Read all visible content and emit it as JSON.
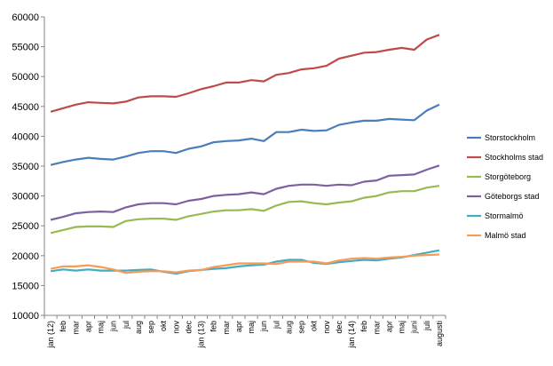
{
  "chart_data": {
    "type": "line",
    "title": "",
    "xlabel": "",
    "ylabel": "",
    "ylim": [
      10000,
      60000
    ],
    "yticks": [
      10000,
      15000,
      20000,
      25000,
      30000,
      35000,
      40000,
      45000,
      50000,
      55000,
      60000
    ],
    "grid": false,
    "legend": "right",
    "x": [
      "jan (12)",
      "feb",
      "mar",
      "apr",
      "maj",
      "jun",
      "jul",
      "aug",
      "sep",
      "okt",
      "nov",
      "dec",
      "jan (13)",
      "feb",
      "mar",
      "apr",
      "maj",
      "jun",
      "jul",
      "aug",
      "sep",
      "okt",
      "nov",
      "dec",
      "jan (14)",
      "feb",
      "mar",
      "apr",
      "maj",
      "juni",
      "juli",
      "augusti"
    ],
    "series": [
      {
        "name": "Storstockholm",
        "color": "#4a7ebb",
        "values": [
          35200,
          35700,
          36100,
          36400,
          36200,
          36100,
          36600,
          37200,
          37500,
          37500,
          37200,
          37900,
          38300,
          39000,
          39200,
          39300,
          39600,
          39200,
          40700,
          40700,
          41100,
          40900,
          41000,
          41900,
          42300,
          42600,
          42600,
          42900,
          42800,
          42700,
          44300,
          45300
        ]
      },
      {
        "name": "Stockholms stad",
        "color": "#be4b48",
        "values": [
          44100,
          44700,
          45300,
          45700,
          45600,
          45500,
          45800,
          46500,
          46700,
          46700,
          46600,
          47200,
          47900,
          48400,
          49000,
          49000,
          49400,
          49200,
          50300,
          50600,
          51200,
          51400,
          51800,
          53000,
          53500,
          54000,
          54100,
          54500,
          54800,
          54500,
          56200,
          57000
        ]
      },
      {
        "name": "Storgöteborg",
        "color": "#98b954",
        "values": [
          23800,
          24300,
          24800,
          24900,
          24900,
          24800,
          25800,
          26100,
          26200,
          26200,
          26000,
          26600,
          27000,
          27400,
          27600,
          27600,
          27800,
          27500,
          28400,
          29000,
          29100,
          28800,
          28600,
          28900,
          29100,
          29700,
          30000,
          30600,
          30800,
          30800,
          31400,
          31700
        ]
      },
      {
        "name": "Göteborgs stad",
        "color": "#7d60a0",
        "values": [
          26000,
          26500,
          27100,
          27300,
          27400,
          27300,
          28100,
          28600,
          28800,
          28800,
          28600,
          29200,
          29500,
          30000,
          30200,
          30300,
          30600,
          30300,
          31200,
          31700,
          31900,
          31900,
          31700,
          31900,
          31800,
          32400,
          32600,
          33400,
          33500,
          33600,
          34400,
          35100
        ]
      },
      {
        "name": "Stormalmö",
        "color": "#46aac4",
        "values": [
          17400,
          17700,
          17500,
          17700,
          17500,
          17500,
          17500,
          17600,
          17700,
          17300,
          17000,
          17400,
          17600,
          17800,
          17900,
          18200,
          18400,
          18500,
          19000,
          19300,
          19300,
          18800,
          18600,
          18900,
          19100,
          19300,
          19200,
          19500,
          19700,
          20100,
          20500,
          20900
        ]
      },
      {
        "name": "Malmö stad",
        "color": "#f59d56",
        "values": [
          17800,
          18200,
          18200,
          18400,
          18100,
          17700,
          17100,
          17300,
          17400,
          17400,
          17200,
          17500,
          17600,
          18100,
          18400,
          18700,
          18700,
          18700,
          18600,
          19000,
          19000,
          19000,
          18700,
          19200,
          19500,
          19600,
          19500,
          19700,
          19800,
          20000,
          20100,
          20200
        ]
      }
    ]
  }
}
